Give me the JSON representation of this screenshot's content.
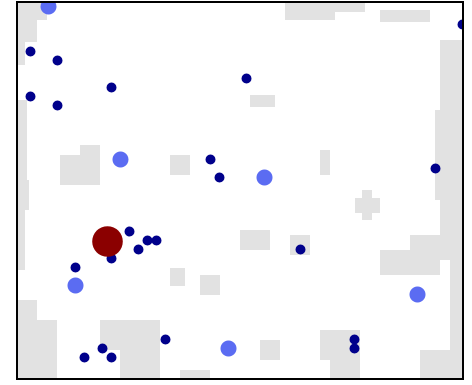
{
  "game": {
    "type": "agent-arena",
    "grid": {
      "cols": 50,
      "rows": 42
    },
    "colors": {
      "background": "#ffffff",
      "obstacle": "#e2e2e2",
      "border": "#000000",
      "player": "#8b0000",
      "food_small": "#00008b",
      "food_large": "#5b6cf2"
    },
    "player": {
      "cell": [
        10,
        26
      ],
      "radius_cells": 1.7
    },
    "food_small": [
      [
        1,
        5
      ],
      [
        4,
        6
      ],
      [
        10,
        9
      ],
      [
        1,
        10
      ],
      [
        4,
        11
      ],
      [
        25,
        8
      ],
      [
        21,
        17
      ],
      [
        22,
        19
      ],
      [
        46,
        18
      ],
      [
        49,
        2
      ],
      [
        50,
        25
      ],
      [
        12,
        25
      ],
      [
        14,
        26
      ],
      [
        15,
        26
      ],
      [
        13,
        27
      ],
      [
        6,
        29
      ],
      [
        10,
        28
      ],
      [
        31,
        27
      ],
      [
        16,
        37
      ],
      [
        37,
        37
      ],
      [
        37,
        38
      ],
      [
        7,
        39
      ],
      [
        9,
        38
      ],
      [
        10,
        39
      ],
      [
        9,
        42
      ],
      [
        10,
        42
      ],
      [
        22,
        42
      ],
      [
        47,
        42
      ]
    ],
    "food_large": [
      [
        3,
        0
      ],
      [
        11,
        17
      ],
      [
        27,
        19
      ],
      [
        6,
        31
      ],
      [
        44,
        32
      ],
      [
        23,
        38
      ]
    ]
  }
}
